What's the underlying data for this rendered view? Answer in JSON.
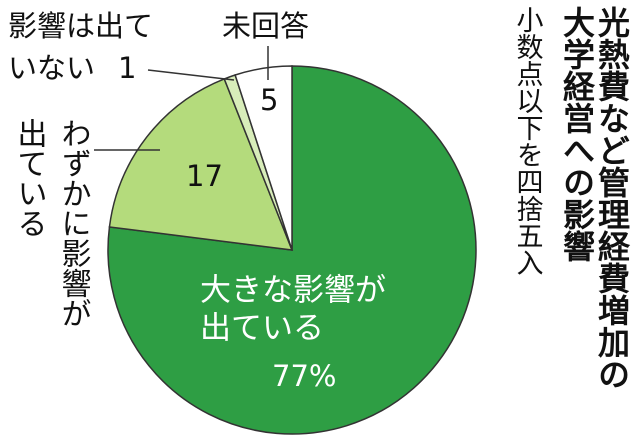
{
  "chart_data": {
    "type": "pie",
    "title": [
      "光熱費など管理経費増加の",
      "大学経営への影響"
    ],
    "subtitle": "小数点以下を四捨五入",
    "categories": [
      [
        "大きな影響が",
        "出ている"
      ],
      [
        "わずかに影響が",
        "出ている"
      ],
      [
        "影響は出て",
        "いない"
      ],
      [
        "未回答"
      ]
    ],
    "values": [
      77,
      17,
      1,
      5
    ],
    "value_labels": [
      "77%",
      "17",
      "1",
      "5"
    ],
    "colors": [
      "#2e9e44",
      "#b4db7c",
      "#d8edba",
      "#ffffff"
    ]
  }
}
